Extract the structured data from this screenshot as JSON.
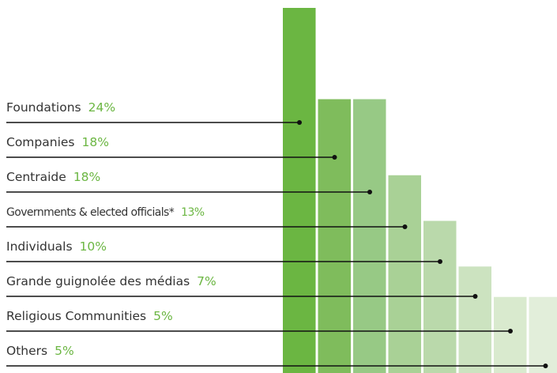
{
  "chart_data": {
    "type": "bar",
    "categories": [
      "Foundations",
      "Companies",
      "Centraide",
      "Governments & elected officials*",
      "Individuals",
      "Grande guignolée des médias",
      "Religious Communities",
      "Others"
    ],
    "values": [
      24,
      18,
      18,
      13,
      10,
      7,
      5,
      5
    ],
    "value_labels": [
      "24%",
      "18%",
      "18%",
      "13%",
      "10%",
      "7%",
      "5%",
      "5%"
    ],
    "colors": [
      "#6bb642",
      "#7fbc5c",
      "#97c985",
      "#a9d196",
      "#bad9ab",
      "#cce3c0",
      "#d9eace",
      "#e2eeda"
    ],
    "label_color": "#333333",
    "value_label_color": "#6bb642"
  }
}
